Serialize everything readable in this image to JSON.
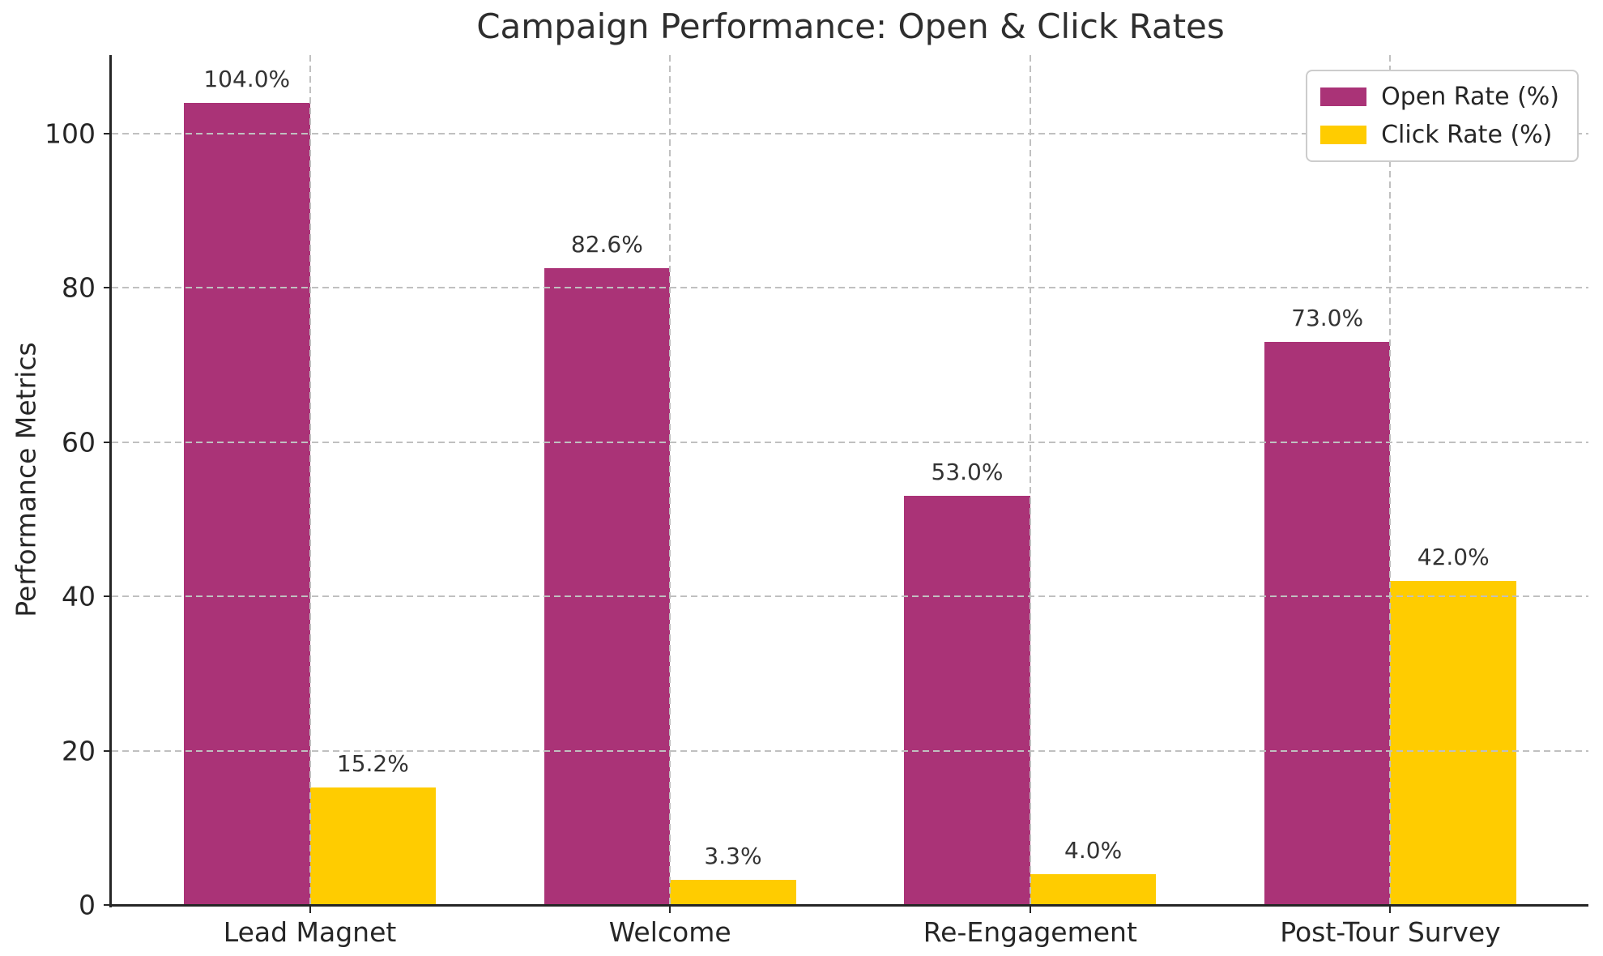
{
  "chart_data": {
    "type": "bar",
    "title": "Campaign Performance: Open & Click Rates",
    "xlabel": "",
    "ylabel": "Performance Metrics",
    "categories": [
      "Lead Magnet",
      "Welcome",
      "Re-Engagement",
      "Post-Tour Survey"
    ],
    "series": [
      {
        "name": "Open Rate (%)",
        "color": "#AA3377",
        "values": [
          104.0,
          82.6,
          53.0,
          73.0
        ]
      },
      {
        "name": "Click Rate (%)",
        "color": "#FFCC00",
        "values": [
          15.2,
          3.3,
          4.0,
          42.0
        ]
      }
    ],
    "value_labels": {
      "Open Rate (%)": [
        "104.0%",
        "82.6%",
        "53.0%",
        "73.0%"
      ],
      "Click Rate (%)": [
        "15.2%",
        "3.3%",
        "4.0%",
        "42.0%"
      ]
    },
    "yticks": [
      0,
      20,
      40,
      60,
      80,
      100
    ],
    "ylim": [
      0,
      110.2
    ],
    "bar_width": 0.35,
    "grid": true,
    "grid_style": "dashed",
    "grid_over_bars": true,
    "legend_position": "upper right"
  },
  "colors": {
    "open_rate": "#AA3377",
    "click_rate": "#FFCC00",
    "text": "#262626",
    "grid": "#c0c0c0",
    "spine": "#262626",
    "legend_border": "#cccccc",
    "background": "#ffffff"
  }
}
